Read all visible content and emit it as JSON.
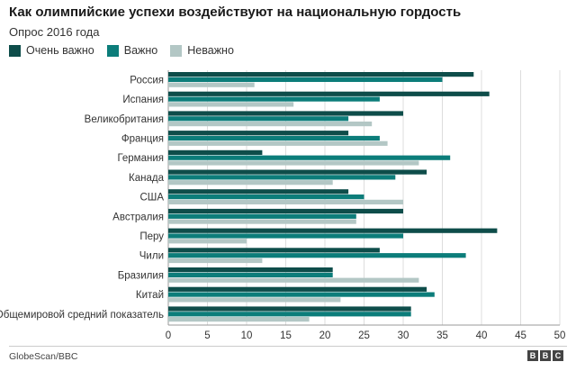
{
  "title": "Как олимпийские успехи воздействуют на национальную гордость",
  "subtitle": "Опрос 2016 года",
  "source": "GlobeScan/BBC",
  "logo": [
    "B",
    "B",
    "C"
  ],
  "colors": {
    "very_important": "#0e4d4a",
    "important": "#0c7d7a",
    "not_important": "#b3c7c5",
    "grid": "#dddddd",
    "axis": "#999999"
  },
  "legend": [
    {
      "label": "Очень важно",
      "color": "#0e4d4a"
    },
    {
      "label": "Важно",
      "color": "#0c7d7a"
    },
    {
      "label": "Неважно",
      "color": "#b3c7c5"
    }
  ],
  "chart_data": {
    "type": "bar",
    "orientation": "horizontal",
    "title": "Как олимпийские успехи воздействуют на национальную гордость",
    "subtitle": "Опрос 2016 года",
    "categories": [
      "Россия",
      "Испания",
      "Великобритания",
      "Франция",
      "Германия",
      "Канада",
      "США",
      "Австралия",
      "Перу",
      "Чили",
      "Бразилия",
      "Китай",
      "Общемировой средний показатель"
    ],
    "series": [
      {
        "name": "Очень важно",
        "color": "#0e4d4a",
        "values": [
          39,
          41,
          30,
          23,
          12,
          33,
          23,
          30,
          42,
          27,
          21,
          33,
          31
        ]
      },
      {
        "name": "Важно",
        "color": "#0c7d7a",
        "values": [
          35,
          27,
          23,
          27,
          36,
          29,
          25,
          24,
          30,
          38,
          21,
          34,
          31
        ]
      },
      {
        "name": "Неважно",
        "color": "#b3c7c5",
        "values": [
          11,
          16,
          26,
          28,
          32,
          21,
          30,
          24,
          10,
          12,
          32,
          22,
          18
        ]
      }
    ],
    "xlim": [
      0,
      50
    ],
    "ticks": [
      0,
      5,
      10,
      15,
      20,
      25,
      30,
      35,
      40,
      45,
      50
    ],
    "grid": true,
    "legend_position": "top-left"
  }
}
